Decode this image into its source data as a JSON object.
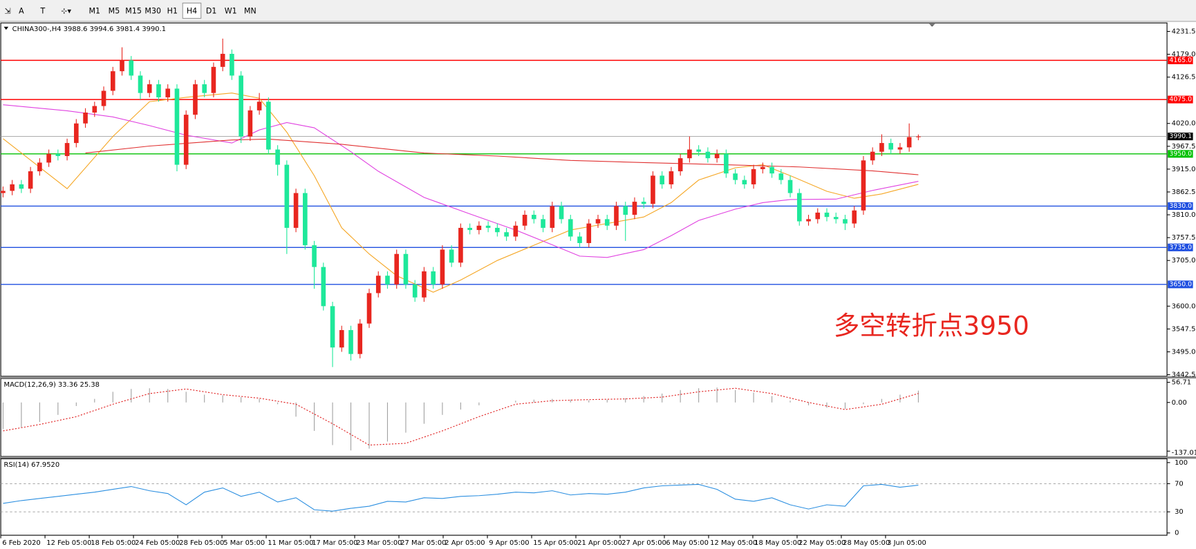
{
  "toolbar": {
    "text_tool": "A",
    "timeframes": [
      "M1",
      "M5",
      "M15",
      "M30",
      "H1",
      "H4",
      "D1",
      "W1",
      "MN"
    ],
    "active": "H4"
  },
  "chart_data": {
    "type": "candlestick",
    "title": "CHINA300-,H4  3988.6 3994.6 3981.4 3990.1",
    "up_color": "#e8261f",
    "down_color": "#1ee89a",
    "candles": [
      [
        3860,
        3875,
        3850,
        3865
      ],
      [
        3865,
        3890,
        3855,
        3880
      ],
      [
        3880,
        3890,
        3860,
        3870
      ],
      [
        3870,
        3920,
        3860,
        3910
      ],
      [
        3910,
        3940,
        3900,
        3930
      ],
      [
        3930,
        3960,
        3920,
        3950
      ],
      [
        3950,
        3960,
        3935,
        3945
      ],
      [
        3945,
        3985,
        3935,
        3975
      ],
      [
        3975,
        4030,
        3965,
        4020
      ],
      [
        4020,
        4055,
        4010,
        4045
      ],
      [
        4045,
        4070,
        4035,
        4060
      ],
      [
        4060,
        4105,
        4050,
        4095
      ],
      [
        4095,
        4150,
        4085,
        4140
      ],
      [
        4140,
        4195,
        4130,
        4165
      ],
      [
        4165,
        4175,
        4120,
        4130
      ],
      [
        4130,
        4140,
        4075,
        4090
      ],
      [
        4090,
        4120,
        4080,
        4110
      ],
      [
        4110,
        4120,
        4070,
        4080
      ],
      [
        4080,
        4110,
        4070,
        4100
      ],
      [
        4100,
        4110,
        3910,
        3925
      ],
      [
        3925,
        4050,
        3915,
        4040
      ],
      [
        4040,
        4120,
        4030,
        4110
      ],
      [
        4110,
        4120,
        4080,
        4090
      ],
      [
        4090,
        4160,
        4080,
        4150
      ],
      [
        4150,
        4215,
        4140,
        4180
      ],
      [
        4180,
        4190,
        4120,
        4130
      ],
      [
        4130,
        4140,
        3975,
        3990
      ],
      [
        3990,
        4060,
        3980,
        4050
      ],
      [
        4050,
        4090,
        4040,
        4070
      ],
      [
        4070,
        4080,
        3950,
        3960
      ],
      [
        3960,
        3970,
        3900,
        3925
      ],
      [
        3925,
        3935,
        3720,
        3780
      ],
      [
        3780,
        3870,
        3770,
        3860
      ],
      [
        3860,
        3870,
        3730,
        3740
      ],
      [
        3740,
        3750,
        3640,
        3690
      ],
      [
        3690,
        3700,
        3590,
        3600
      ],
      [
        3600,
        3610,
        3460,
        3505
      ],
      [
        3505,
        3555,
        3495,
        3545
      ],
      [
        3545,
        3555,
        3475,
        3490
      ],
      [
        3490,
        3570,
        3480,
        3560
      ],
      [
        3560,
        3640,
        3550,
        3630
      ],
      [
        3630,
        3680,
        3620,
        3670
      ],
      [
        3670,
        3680,
        3640,
        3650
      ],
      [
        3650,
        3730,
        3640,
        3720
      ],
      [
        3720,
        3730,
        3640,
        3650
      ],
      [
        3650,
        3660,
        3610,
        3620
      ],
      [
        3620,
        3690,
        3610,
        3680
      ],
      [
        3680,
        3690,
        3640,
        3650
      ],
      [
        3650,
        3740,
        3640,
        3730
      ],
      [
        3730,
        3740,
        3690,
        3700
      ],
      [
        3700,
        3790,
        3690,
        3780
      ],
      [
        3780,
        3790,
        3765,
        3775
      ],
      [
        3775,
        3795,
        3765,
        3785
      ],
      [
        3785,
        3795,
        3770,
        3780
      ],
      [
        3780,
        3790,
        3760,
        3770
      ],
      [
        3770,
        3780,
        3750,
        3760
      ],
      [
        3760,
        3795,
        3750,
        3785
      ],
      [
        3785,
        3820,
        3775,
        3810
      ],
      [
        3810,
        3820,
        3790,
        3800
      ],
      [
        3800,
        3810,
        3770,
        3780
      ],
      [
        3780,
        3840,
        3770,
        3830
      ],
      [
        3830,
        3840,
        3790,
        3800
      ],
      [
        3800,
        3810,
        3750,
        3760
      ],
      [
        3760,
        3770,
        3735,
        3745
      ],
      [
        3745,
        3800,
        3735,
        3790
      ],
      [
        3790,
        3810,
        3780,
        3800
      ],
      [
        3800,
        3810,
        3775,
        3785
      ],
      [
        3785,
        3840,
        3775,
        3830
      ],
      [
        3830,
        3840,
        3750,
        3810
      ],
      [
        3810,
        3850,
        3800,
        3840
      ],
      [
        3840,
        3850,
        3825,
        3835
      ],
      [
        3835,
        3910,
        3825,
        3900
      ],
      [
        3900,
        3910,
        3870,
        3880
      ],
      [
        3880,
        3920,
        3870,
        3910
      ],
      [
        3910,
        3950,
        3900,
        3940
      ],
      [
        3940,
        3990,
        3930,
        3960
      ],
      [
        3960,
        3970,
        3945,
        3955
      ],
      [
        3955,
        3965,
        3930,
        3940
      ],
      [
        3940,
        3960,
        3930,
        3950
      ],
      [
        3950,
        3960,
        3895,
        3905
      ],
      [
        3905,
        3915,
        3880,
        3890
      ],
      [
        3890,
        3900,
        3870,
        3880
      ],
      [
        3880,
        3925,
        3870,
        3915
      ],
      [
        3915,
        3930,
        3905,
        3920
      ],
      [
        3920,
        3930,
        3895,
        3905
      ],
      [
        3905,
        3915,
        3880,
        3890
      ],
      [
        3890,
        3900,
        3850,
        3860
      ],
      [
        3860,
        3870,
        3785,
        3795
      ],
      [
        3795,
        3810,
        3785,
        3800
      ],
      [
        3800,
        3825,
        3790,
        3815
      ],
      [
        3815,
        3825,
        3795,
        3805
      ],
      [
        3805,
        3815,
        3790,
        3800
      ],
      [
        3800,
        3810,
        3775,
        3790
      ],
      [
        3790,
        3830,
        3780,
        3820
      ],
      [
        3820,
        3945,
        3810,
        3935
      ],
      [
        3935,
        3965,
        3925,
        3955
      ],
      [
        3955,
        3995,
        3945,
        3975
      ],
      [
        3975,
        3985,
        3950,
        3960
      ],
      [
        3960,
        3975,
        3950,
        3965
      ],
      [
        3965,
        4020,
        3955,
        3988.6
      ],
      [
        3988.6,
        3994.6,
        3981.4,
        3990.1
      ]
    ],
    "ma": [
      {
        "color": "#f5a623",
        "x": [
          0,
          7,
          12,
          16,
          20,
          25,
          28,
          31,
          34,
          37,
          40,
          43,
          47,
          50,
          54,
          58,
          62,
          66,
          70,
          73,
          76,
          80,
          83,
          86,
          90,
          93,
          96,
          100
        ],
        "values": [
          3985,
          3870,
          3990,
          4070,
          4080,
          4090,
          4078,
          4000,
          3900,
          3780,
          3720,
          3670,
          3632,
          3660,
          3705,
          3740,
          3775,
          3790,
          3805,
          3838,
          3890,
          3918,
          3925,
          3900,
          3864,
          3848,
          3858,
          3880
        ]
      },
      {
        "color": "#e040e0",
        "x": [
          0,
          7,
          12,
          16,
          20,
          25,
          28,
          31,
          34,
          38,
          41,
          46,
          51,
          56,
          60,
          63,
          66,
          70,
          73,
          76,
          80,
          83,
          86,
          91,
          95,
          100
        ],
        "values": [
          4063,
          4049,
          4035,
          4015,
          3993,
          3975,
          4005,
          4022,
          4010,
          3955,
          3910,
          3850,
          3812,
          3775,
          3741,
          3715,
          3712,
          3730,
          3762,
          3797,
          3823,
          3838,
          3845,
          3846,
          3866,
          3887
        ]
      },
      {
        "color": "#e03030",
        "x": [
          9,
          16,
          25,
          29,
          37,
          46,
          54,
          62,
          70,
          79,
          87,
          95,
          100
        ],
        "values": [
          3952,
          3968,
          3982,
          3984,
          3972,
          3952,
          3945,
          3935,
          3930,
          3925,
          3920,
          3911,
          3902
        ]
      }
    ],
    "levels": [
      {
        "value": 4165,
        "label": "4165.0",
        "color": "#ff0000"
      },
      {
        "value": 4075,
        "label": "4075.0",
        "color": "#ff0000"
      },
      {
        "value": 3950,
        "label": "3950.0",
        "color": "#00c000"
      },
      {
        "value": 3830,
        "label": "3830.0",
        "color": "#1f4fe0"
      },
      {
        "value": 3735,
        "label": "3735.0",
        "color": "#1f4fe0"
      },
      {
        "value": 3650,
        "label": "3650.0",
        "color": "#1f4fe0"
      }
    ],
    "last_price": {
      "value": 3990.1,
      "label": "3990.1"
    },
    "ylim": [
      3439,
      4251
    ],
    "yticks": [
      {
        "value": 4231.5,
        "label": "4231.5"
      },
      {
        "value": 4179,
        "label": "4179.0"
      },
      {
        "value": 4126.5,
        "label": "4126.5"
      },
      {
        "value": 4020,
        "label": "4020.0"
      },
      {
        "value": 3967.5,
        "label": "3967.5"
      },
      {
        "value": 3915,
        "label": "3915.0"
      },
      {
        "value": 3862.5,
        "label": "3862.5"
      },
      {
        "value": 3810,
        "label": "3810.0"
      },
      {
        "value": 3757.5,
        "label": "3757.5"
      },
      {
        "value": 3705,
        "label": "3705.0"
      },
      {
        "value": 3600,
        "label": "3600.0"
      },
      {
        "value": 3547.5,
        "label": "3547.5"
      },
      {
        "value": 3495,
        "label": "3495.0"
      },
      {
        "value": 3442.5,
        "label": "3442.5"
      }
    ],
    "annotation": "多空转折点3950",
    "dates": [
      "6 Feb 2020",
      "12 Feb 05:00",
      "18 Feb 05:00",
      "24 Feb 05:00",
      "28 Feb 05:00",
      "5 Mar 05:00",
      "11 Mar 05:00",
      "17 Mar 05:00",
      "23 Mar 05:00",
      "27 Mar 05:00",
      "2 Apr 05:00",
      "9 Apr 05:00",
      "15 Apr 05:00",
      "21 Apr 05:00",
      "27 Apr 05:00",
      "6 May 05:00",
      "12 May 05:00",
      "18 May 05:00",
      "22 May 05:00",
      "28 May 05:00",
      "3 Jun 05:00"
    ],
    "macd": {
      "title": "MACD(12,26,9) 33.36 25.38",
      "ylim": [
        -137.01,
        56.71
      ],
      "yticks": [
        56.71,
        {
          "value": 0,
          "label": "0.00"
        },
        -137.01
      ],
      "histogram": {
        "color": "#a0a0a0",
        "x": [
          0,
          2,
          4,
          6,
          8,
          10,
          12,
          14,
          16,
          18,
          20,
          22,
          24,
          26,
          28,
          30,
          32,
          34,
          36,
          38,
          40,
          42,
          44,
          46,
          48,
          50,
          52,
          54,
          56,
          58,
          60,
          62,
          64,
          66,
          68,
          70,
          72,
          74,
          76,
          78,
          80,
          82,
          84,
          86,
          88,
          90,
          92,
          94,
          96,
          98,
          100
        ],
        "values": [
          -75,
          -70,
          -55,
          -35,
          -10,
          10,
          30,
          38,
          40,
          38,
          30,
          22,
          20,
          15,
          10,
          -5,
          -40,
          -80,
          -120,
          -135,
          -130,
          -110,
          -85,
          -60,
          -35,
          -20,
          -8,
          0,
          5,
          8,
          10,
          8,
          6,
          8,
          12,
          18,
          25,
          35,
          40,
          42,
          35,
          28,
          18,
          5,
          -8,
          -15,
          -18,
          -5,
          10,
          22,
          33.36
        ]
      },
      "signal": {
        "color": "#e02020",
        "x": [
          0,
          4,
          8,
          12,
          16,
          20,
          24,
          28,
          32,
          36,
          40,
          44,
          48,
          52,
          56,
          60,
          64,
          68,
          72,
          76,
          80,
          84,
          88,
          92,
          96,
          100
        ],
        "values": [
          -80,
          -62,
          -40,
          -5,
          25,
          38,
          22,
          12,
          -5,
          -60,
          -120,
          -115,
          -80,
          -40,
          -5,
          5,
          8,
          10,
          15,
          30,
          40,
          25,
          0,
          -20,
          -5,
          25.38
        ]
      }
    },
    "rsi": {
      "title": "RSI(14) 67.9520",
      "ylim": [
        0,
        100
      ],
      "yticks": [
        100,
        70,
        30,
        0
      ],
      "levels": [
        70,
        30
      ],
      "color": "#2a8ee0",
      "x": [
        0,
        2,
        4,
        6,
        8,
        10,
        12,
        14,
        16,
        18,
        20,
        22,
        24,
        26,
        28,
        30,
        32,
        34,
        36,
        38,
        40,
        42,
        44,
        46,
        48,
        50,
        52,
        54,
        56,
        58,
        60,
        62,
        64,
        66,
        68,
        70,
        72,
        74,
        76,
        78,
        80,
        82,
        84,
        86,
        88,
        90,
        92,
        94,
        96,
        98,
        100
      ],
      "values": [
        42,
        46,
        49,
        52,
        55,
        58,
        62,
        66,
        60,
        56,
        40,
        58,
        64,
        52,
        58,
        44,
        50,
        33,
        31,
        35,
        38,
        45,
        44,
        50,
        49,
        52,
        53,
        55,
        58,
        57,
        60,
        54,
        56,
        55,
        58,
        64,
        67,
        68,
        69,
        62,
        48,
        45,
        50,
        40,
        34,
        40,
        38,
        67,
        69,
        65,
        67.952
      ]
    }
  }
}
